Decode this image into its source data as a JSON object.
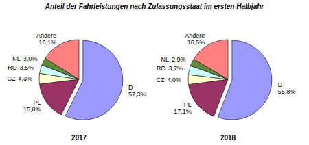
{
  "chart_data": {
    "type": "pie",
    "title": "Anteil der Fahrleistungen  nach Zulassungsstaat  im ersten Halbjahr",
    "categories": [
      "D",
      "PL",
      "CZ",
      "RO",
      "NL",
      "Andere"
    ],
    "colors": [
      "#9999ff",
      "#993366",
      "#ffffcc",
      "#ccffff",
      "#5f8a3a",
      "#ff8080"
    ],
    "data_labels": true,
    "series": [
      {
        "name": "2017",
        "values": [
          57.3,
          15.8,
          4.3,
          3.5,
          3.0,
          16.1
        ],
        "value_labels": [
          "57,3%",
          "15,8%",
          "4,3%",
          "3,5%",
          "3,0%",
          "16,1%"
        ]
      },
      {
        "name": "2018",
        "values": [
          55.8,
          17.1,
          4.0,
          3.7,
          2.9,
          16.5
        ],
        "value_labels": [
          "55,8%",
          "17,1%",
          "4,0%",
          "3,7%",
          "2,9%",
          "16,5%"
        ]
      }
    ]
  }
}
